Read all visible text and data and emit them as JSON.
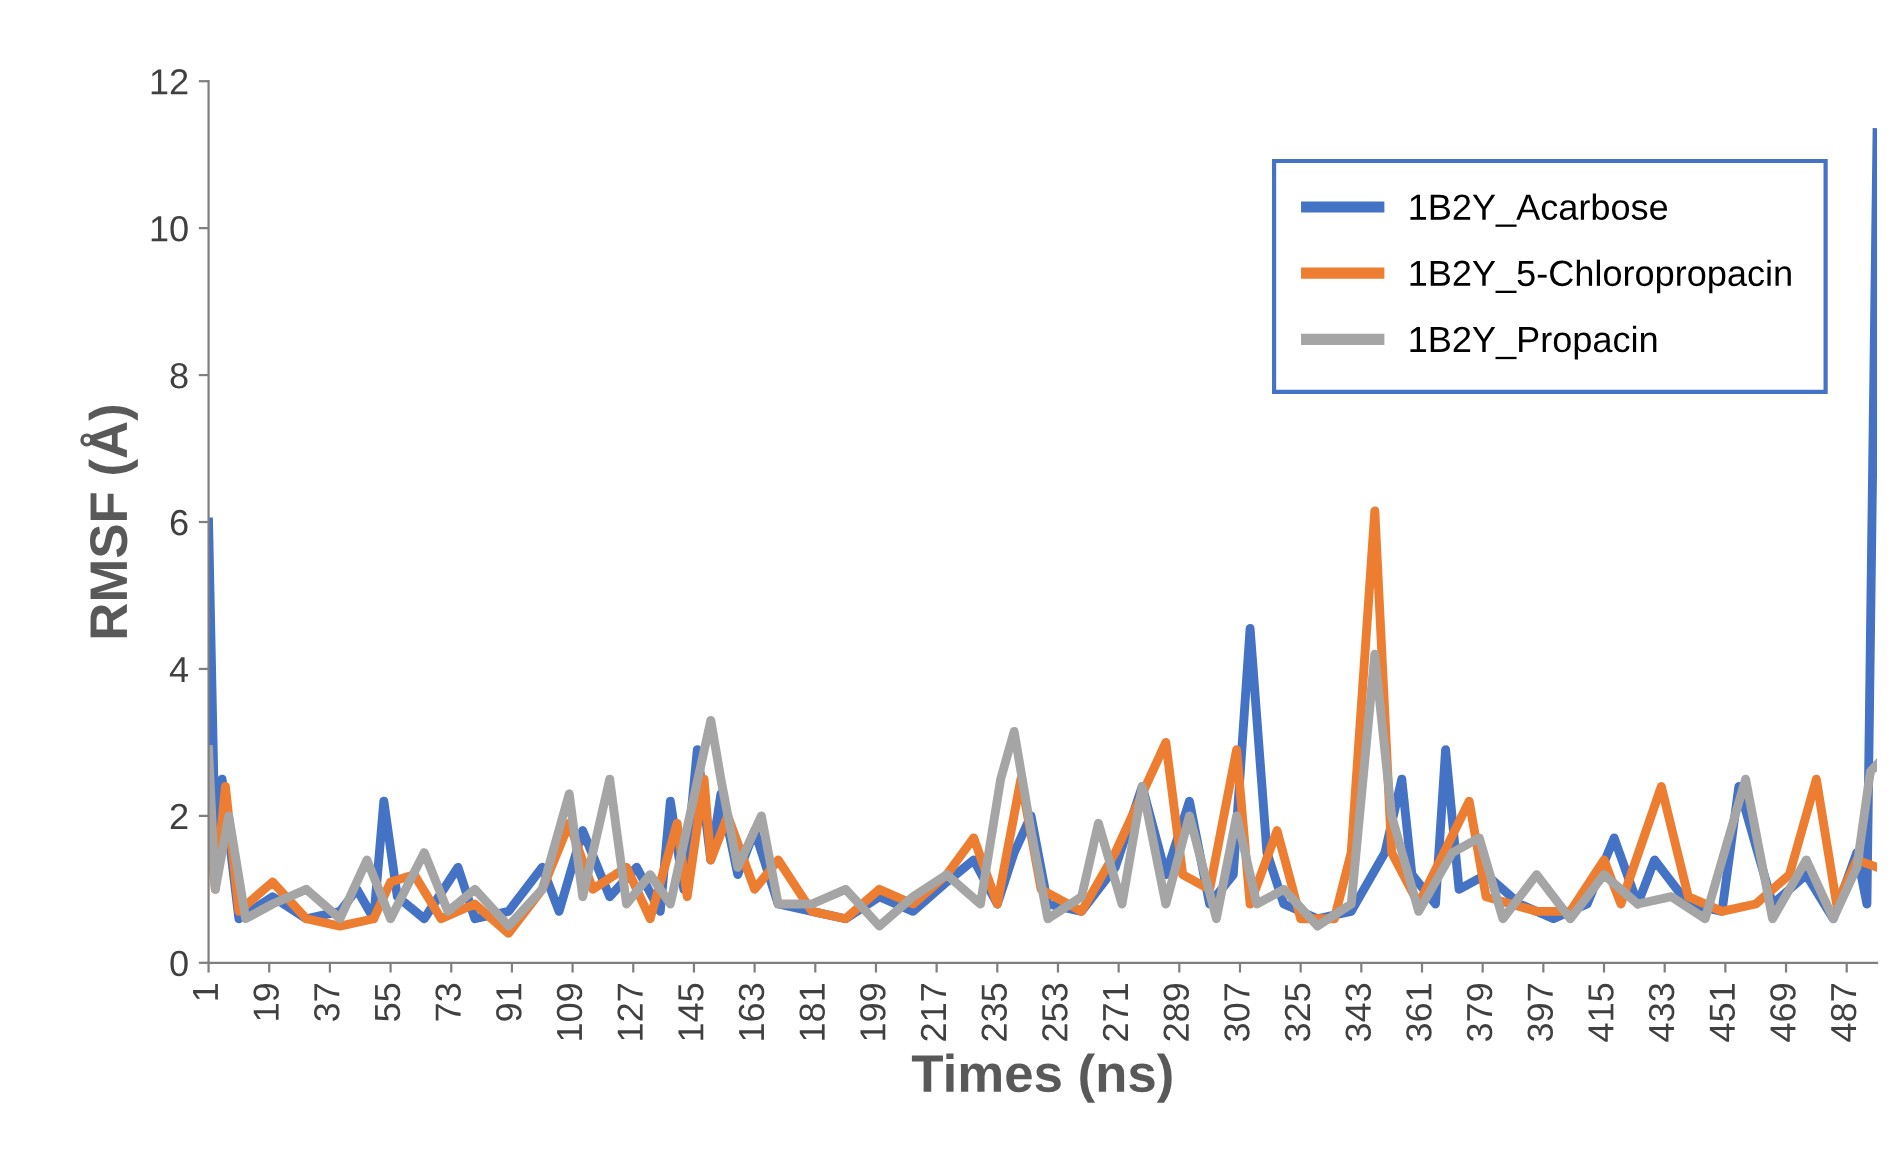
{
  "chart_data": {
    "type": "line",
    "xlabel": "Times (ns)",
    "ylabel": "RMSF (Å)",
    "xlim": [
      1,
      496
    ],
    "xticks": [
      1,
      19,
      37,
      55,
      73,
      91,
      109,
      127,
      145,
      163,
      181,
      199,
      217,
      235,
      253,
      271,
      289,
      307,
      325,
      343,
      361,
      379,
      397,
      415,
      433,
      451,
      469,
      487
    ],
    "ylim": [
      0,
      12
    ],
    "yticks": [
      0,
      2,
      4,
      6,
      8,
      10,
      12
    ],
    "grid": false,
    "legend": "top right",
    "marker": "none",
    "line_style": "solid",
    "series": [
      {
        "name": "1B2Y_Acarbose",
        "color": "#4472c4",
        "x": [
          1,
          3,
          5,
          10,
          20,
          30,
          40,
          45,
          50,
          53,
          57,
          65,
          75,
          80,
          90,
          100,
          105,
          112,
          120,
          128,
          135,
          138,
          142,
          146,
          150,
          153,
          158,
          163,
          170,
          180,
          190,
          200,
          210,
          220,
          228,
          235,
          240,
          245,
          250,
          260,
          270,
          278,
          285,
          292,
          298,
          305,
          310,
          315,
          320,
          330,
          340,
          350,
          355,
          358,
          365,
          368,
          372,
          380,
          390,
          400,
          410,
          418,
          425,
          430,
          440,
          450,
          455,
          465,
          475,
          483,
          490,
          493,
          496
        ],
        "values": [
          6.0,
          1.5,
          2.5,
          0.6,
          0.9,
          0.6,
          0.7,
          1.0,
          0.6,
          2.2,
          0.9,
          0.6,
          1.3,
          0.6,
          0.7,
          1.3,
          0.7,
          1.8,
          0.9,
          1.3,
          0.7,
          2.2,
          1.0,
          2.9,
          1.4,
          2.3,
          1.2,
          1.8,
          0.8,
          0.7,
          0.6,
          0.9,
          0.7,
          1.1,
          1.4,
          0.8,
          1.5,
          2.0,
          0.8,
          0.7,
          1.3,
          2.4,
          1.2,
          2.2,
          0.8,
          1.2,
          4.55,
          1.5,
          0.8,
          0.6,
          0.7,
          1.5,
          2.5,
          1.2,
          0.8,
          2.9,
          1.0,
          1.2,
          0.8,
          0.6,
          0.8,
          1.7,
          0.8,
          1.4,
          0.8,
          0.7,
          2.4,
          0.8,
          1.2,
          0.6,
          1.5,
          0.8,
          11.3
        ]
      },
      {
        "name": "1B2Y_5-Chloropropacin",
        "color": "#ed7d31",
        "x": [
          1,
          3,
          6,
          10,
          20,
          30,
          40,
          50,
          55,
          62,
          70,
          80,
          90,
          100,
          108,
          115,
          125,
          132,
          140,
          143,
          148,
          150,
          155,
          163,
          170,
          180,
          190,
          200,
          210,
          220,
          228,
          235,
          242,
          248,
          260,
          270,
          277,
          285,
          290,
          298,
          306,
          310,
          318,
          325,
          335,
          340,
          347,
          352,
          360,
          375,
          380,
          395,
          405,
          415,
          420,
          432,
          440,
          450,
          460,
          470,
          478,
          484,
          490,
          496
        ],
        "values": [
          2.0,
          1.0,
          2.4,
          0.7,
          1.1,
          0.6,
          0.5,
          0.6,
          1.1,
          1.2,
          0.6,
          0.8,
          0.4,
          1.0,
          1.9,
          1.0,
          1.3,
          0.6,
          1.9,
          0.9,
          2.5,
          1.4,
          2.0,
          1.0,
          1.4,
          0.7,
          0.6,
          1.0,
          0.8,
          1.2,
          1.7,
          0.8,
          2.5,
          1.0,
          0.7,
          1.5,
          2.2,
          3.0,
          1.2,
          1.0,
          2.9,
          0.8,
          1.8,
          0.6,
          0.6,
          1.5,
          6.15,
          1.5,
          0.8,
          2.2,
          0.9,
          0.7,
          0.7,
          1.4,
          0.8,
          2.4,
          0.9,
          0.7,
          0.8,
          1.2,
          2.5,
          0.8,
          1.4,
          1.3
        ]
      },
      {
        "name": "1B2Y_Propacin",
        "color": "#a5a5a5",
        "x": [
          1,
          3,
          7,
          12,
          20,
          30,
          40,
          48,
          55,
          65,
          72,
          80,
          90,
          100,
          108,
          112,
          120,
          125,
          132,
          138,
          150,
          153,
          158,
          165,
          170,
          180,
          190,
          200,
          210,
          220,
          230,
          236,
          240,
          245,
          250,
          260,
          265,
          272,
          278,
          285,
          292,
          300,
          306,
          312,
          320,
          330,
          340,
          347,
          352,
          360,
          370,
          378,
          385,
          395,
          405,
          415,
          425,
          435,
          445,
          457,
          465,
          475,
          483,
          490,
          494,
          496
        ],
        "values": [
          2.9,
          1.0,
          2.0,
          0.6,
          0.8,
          1.0,
          0.6,
          1.4,
          0.6,
          1.5,
          0.7,
          1.0,
          0.5,
          1.0,
          2.3,
          0.9,
          2.5,
          0.8,
          1.2,
          0.8,
          3.3,
          2.5,
          1.3,
          2.0,
          0.8,
          0.8,
          1.0,
          0.5,
          0.9,
          1.2,
          0.8,
          2.5,
          3.15,
          1.8,
          0.6,
          0.9,
          1.9,
          0.8,
          2.4,
          0.8,
          2.0,
          0.6,
          2.0,
          0.8,
          1.0,
          0.5,
          0.8,
          4.2,
          2.0,
          0.7,
          1.5,
          1.7,
          0.6,
          1.2,
          0.6,
          1.2,
          0.8,
          0.9,
          0.6,
          2.5,
          0.6,
          1.4,
          0.6,
          1.3,
          2.6,
          2.7
        ]
      }
    ]
  }
}
